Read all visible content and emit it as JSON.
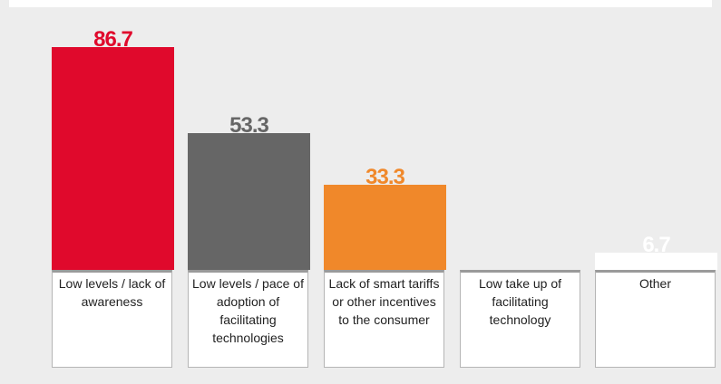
{
  "chart_data": {
    "type": "bar",
    "categories": [
      "Low levels / lack of awareness",
      "Low levels / pace of adoption of facilitating technologies",
      "Lack of smart tariffs or other incentives to the consumer",
      "Low take up of facilitating technology",
      "Other"
    ],
    "values": [
      86.7,
      53.3,
      33.3,
      null,
      6.7
    ],
    "colors": [
      "#e0092c",
      "#666666",
      "#f0882a",
      "#ffffff",
      "#ffffff"
    ]
  }
}
